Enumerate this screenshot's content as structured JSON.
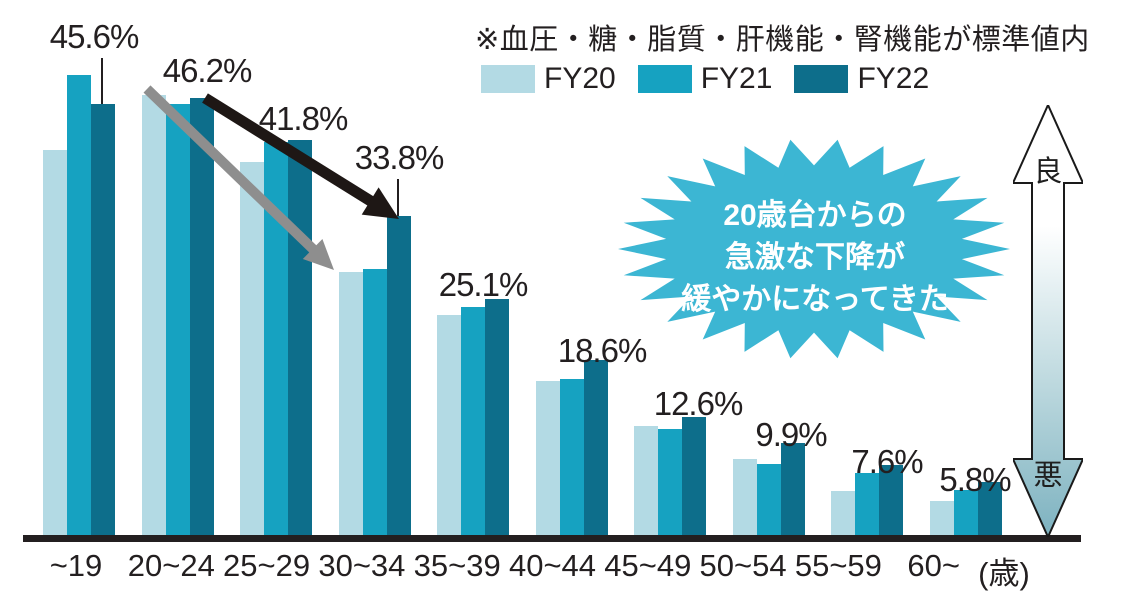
{
  "chart_data": {
    "type": "bar",
    "note": "※血圧・糖・脂質・肝機能・腎機能が標準値内",
    "categories": [
      "~19",
      "20~24",
      "25~29",
      "30~34",
      "35~39",
      "40~44",
      "45~49",
      "50~54",
      "55~59",
      "60~"
    ],
    "x_unit": "(歳)",
    "series": [
      {
        "name": "FY20",
        "color": "#b3dae4",
        "values": [
          40.7,
          46.5,
          39.5,
          27.9,
          23.4,
          16.4,
          11.7,
          8.2,
          4.8,
          3.8
        ]
      },
      {
        "name": "FY21",
        "color": "#16a2c1",
        "values": [
          48.6,
          45.6,
          41.6,
          28.2,
          24.2,
          16.6,
          11.4,
          7.7,
          6.7,
          4.9
        ]
      },
      {
        "name": "FY22",
        "color": "#0d6e8b",
        "values": [
          45.6,
          46.2,
          41.8,
          33.8,
          25.1,
          18.6,
          12.6,
          9.9,
          7.6,
          5.8
        ]
      }
    ],
    "data_labels": [
      "45.6%",
      "46.2%",
      "41.8%",
      "33.8%",
      "25.1%",
      "18.6%",
      "12.6%",
      "9.9%",
      "7.6%",
      "5.8%"
    ],
    "data_label_series": "FY22",
    "ylim": [
      0,
      50
    ],
    "grid": false,
    "legend_position": "top-right",
    "callout": {
      "lines": [
        "20歳台からの",
        "急激な下降が",
        "緩やかになってきた"
      ]
    },
    "value_axis_labels": {
      "good": "良",
      "bad": "悪"
    },
    "colors": {
      "callout_fill": "#3cb6d3",
      "axis": "#231f20",
      "trend_arrow_black": "#1e1715",
      "trend_arrow_gray": "#8e8e8e",
      "scale_gradient": [
        "#ffffff",
        "#ffffff",
        "#bcd8de",
        "#7db2c0"
      ],
      "scale_outline": "#1a1a1a"
    }
  }
}
